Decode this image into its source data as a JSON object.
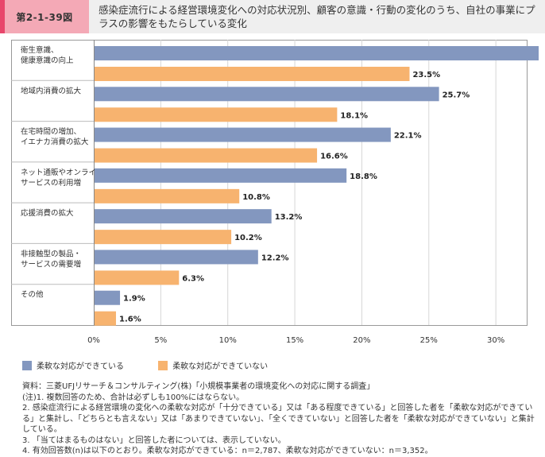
{
  "header": {
    "figure_number": "第2-1-39図",
    "title": "感染症流行による経営環境変化への対応状況別、顧客の意識・行動の変化のうち、自社の事業にプラスの影響をもたらしている変化"
  },
  "colors": {
    "flexible": "#8397bf",
    "not_flexible": "#f7b36f"
  },
  "chart_data": {
    "type": "bar",
    "orientation": "horizontal",
    "categories": [
      [
        "衛生意識、",
        "健康意識の向上"
      ],
      [
        "地域内消費の拡大"
      ],
      [
        "在宅時間の増加、",
        "イエナカ消費の拡大"
      ],
      [
        "ネット通販やオンライン",
        "サービスの利用増"
      ],
      [
        "応援消費の拡大"
      ],
      [
        "非接触型の製品・",
        "サービスの需要増"
      ],
      [
        "その他"
      ]
    ],
    "series": [
      {
        "name": "柔軟な対応ができている",
        "values": [
          34.4,
          25.7,
          22.1,
          18.8,
          13.2,
          12.2,
          1.9
        ]
      },
      {
        "name": "柔軟な対応ができていない",
        "values": [
          23.5,
          18.1,
          16.6,
          10.8,
          10.2,
          6.3,
          1.6
        ]
      }
    ],
    "xlim": [
      0,
      35
    ],
    "xticks": [
      0,
      5,
      10,
      15,
      20,
      25,
      30,
      35
    ],
    "tick_suffix": "%",
    "grid": true,
    "legend_position": "bottom-left"
  },
  "legend": {
    "flexible": "柔軟な対応ができている",
    "not_flexible": "柔軟な対応ができていない"
  },
  "notes": [
    "資料：三菱UFJリサーチ＆コンサルティング(株)「小規模事業者の環境変化への対応に関する調査」",
    "(注)1. 複数回答のため、合計は必ずしも100%にはならない。",
    "2. 感染症流行による経営環境の変化への柔軟な対応が「十分できている」又は「ある程度できている」と回答した者を「柔軟な対応ができている」と集計し、「どちらとも言えない」又は「あまりできていない」、「全くできていない」と回答した者を「柔軟な対応ができていない」と集計している。",
    "3. 「当てはまるものはない」と回答した者については、表示していない。",
    "4. 有効回答数(n)は以下のとおり。柔軟な対応ができている：n＝2,787、柔軟な対応ができていない：n＝3,352。"
  ]
}
